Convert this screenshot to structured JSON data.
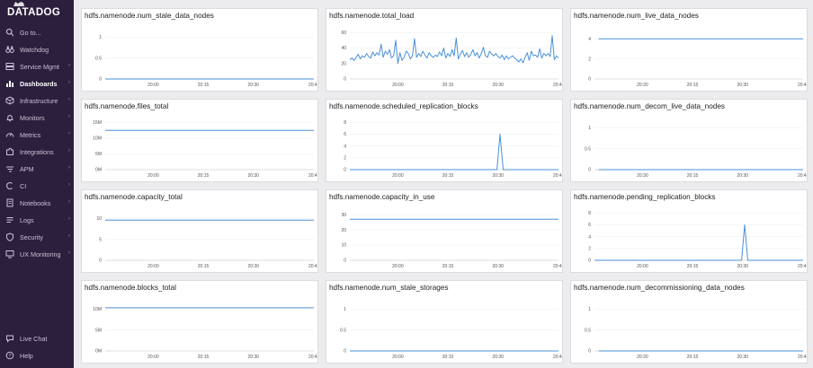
{
  "brand": {
    "name": "DATADOG"
  },
  "nav": {
    "items": [
      {
        "label": "Go to...",
        "icon": "search-icon",
        "chevron": false
      },
      {
        "label": "Watchdog",
        "icon": "binoculars-icon",
        "chevron": false
      },
      {
        "label": "Service Mgmt",
        "icon": "server-icon",
        "chevron": true
      },
      {
        "label": "Dashboards",
        "icon": "dashboard-icon",
        "chevron": true,
        "active": true
      },
      {
        "label": "Infrastructure",
        "icon": "cube-icon",
        "chevron": true
      },
      {
        "label": "Monitors",
        "icon": "bell-icon",
        "chevron": true
      },
      {
        "label": "Metrics",
        "icon": "gauge-icon",
        "chevron": true
      },
      {
        "label": "Integrations",
        "icon": "puzzle-icon",
        "chevron": true
      },
      {
        "label": "APM",
        "icon": "apm-icon",
        "chevron": true
      },
      {
        "label": "CI",
        "icon": "ci-icon",
        "chevron": true
      },
      {
        "label": "Notebooks",
        "icon": "notebook-icon",
        "chevron": true
      },
      {
        "label": "Logs",
        "icon": "logs-icon",
        "chevron": true
      },
      {
        "label": "Security",
        "icon": "shield-icon",
        "chevron": true
      },
      {
        "label": "UX Monitoring",
        "icon": "ux-monitor-icon",
        "chevron": true
      }
    ],
    "bottom": [
      {
        "label": "Live Chat",
        "icon": "chat-icon"
      },
      {
        "label": "Help",
        "icon": "help-icon"
      }
    ]
  },
  "colors": {
    "line": "#4a90d9",
    "sidebar": "#2b1f3d",
    "grid": "#f0f0f2",
    "axis": "#c8c8cc"
  },
  "chart_data": [
    {
      "title": "hdfs.namenode.num_stale_data_nodes",
      "type": "line",
      "x_ticks": [
        "20:00",
        "20:15",
        "20:30",
        "20:4"
      ],
      "y_ticks": [
        "0",
        "0.5",
        "1"
      ],
      "ylim": [
        0,
        1.2
      ],
      "x_start": 0.0,
      "series": [
        {
          "x": [
            0,
            1
          ],
          "y": [
            0,
            0
          ]
        }
      ]
    },
    {
      "title": "hdfs.namenode.total_load",
      "type": "line",
      "x_ticks": [
        "20:00",
        "20:15",
        "20:30",
        "20:4"
      ],
      "y_ticks": [
        "0",
        "20",
        "40",
        "60"
      ],
      "ylim": [
        0,
        65
      ],
      "x_start": 0.0,
      "series": [
        {
          "x": [
            0,
            0.01,
            0.02,
            0.03,
            0.04,
            0.05,
            0.06,
            0.07,
            0.08,
            0.09,
            0.1,
            0.11,
            0.12,
            0.13,
            0.14,
            0.15,
            0.16,
            0.17,
            0.18,
            0.19,
            0.2,
            0.21,
            0.22,
            0.23,
            0.24,
            0.25,
            0.26,
            0.27,
            0.28,
            0.29,
            0.3,
            0.31,
            0.32,
            0.33,
            0.34,
            0.35,
            0.36,
            0.37,
            0.38,
            0.39,
            0.4,
            0.41,
            0.42,
            0.43,
            0.44,
            0.45,
            0.46,
            0.47,
            0.48,
            0.49,
            0.5,
            0.51,
            0.52,
            0.53,
            0.54,
            0.55,
            0.56,
            0.57,
            0.58,
            0.59,
            0.6,
            0.61,
            0.62,
            0.63,
            0.64,
            0.65,
            0.66,
            0.67,
            0.68,
            0.69,
            0.7,
            0.71,
            0.72,
            0.73,
            0.74,
            0.75,
            0.76,
            0.77,
            0.78,
            0.79,
            0.8,
            0.81,
            0.82,
            0.83,
            0.84,
            0.85,
            0.86,
            0.87,
            0.88,
            0.89,
            0.9,
            0.91,
            0.92,
            0.93,
            0.94,
            0.95,
            0.96,
            0.97,
            0.98,
            0.99,
            1
          ],
          "y": [
            25,
            27,
            24,
            28,
            32,
            26,
            30,
            28,
            33,
            29,
            27,
            35,
            30,
            34,
            31,
            45,
            28,
            36,
            32,
            38,
            27,
            30,
            50,
            20,
            34,
            24,
            28,
            36,
            33,
            26,
            30,
            52,
            28,
            33,
            29,
            36,
            31,
            27,
            34,
            30,
            28,
            31,
            29,
            35,
            30,
            40,
            27,
            33,
            29,
            38,
            30,
            53,
            26,
            32,
            37,
            29,
            34,
            28,
            32,
            38,
            30,
            34,
            27,
            33,
            41,
            30,
            28,
            36,
            32,
            30,
            33,
            29,
            27,
            31,
            25,
            30,
            26,
            28,
            30,
            27,
            25,
            22,
            26,
            21,
            28,
            34,
            24,
            36,
            30,
            31,
            28,
            39,
            27,
            33,
            30,
            33,
            29,
            56,
            25,
            30,
            27
          ]
        }
      ]
    },
    {
      "title": "hdfs.namenode.num_live_data_nodes",
      "type": "line",
      "x_ticks": [
        "20:30",
        "20:15",
        "20:30",
        "20:4"
      ],
      "y_ticks": [
        "0",
        "2",
        "4"
      ],
      "ylim": [
        0,
        5
      ],
      "x_start": 0.02,
      "series": [
        {
          "x": [
            0,
            1
          ],
          "y": [
            4,
            4
          ]
        }
      ]
    },
    {
      "title": "hdfs.namenode.files_total",
      "type": "line",
      "x_ticks": [
        "20:00",
        "20:15",
        "20:30",
        "20:4"
      ],
      "y_ticks": [
        "0M",
        "5M",
        "10M",
        "15M"
      ],
      "ylim": [
        0,
        16
      ],
      "x_start": 0.0,
      "series": [
        {
          "x": [
            0,
            1
          ],
          "y": [
            12.5,
            12.5
          ]
        }
      ]
    },
    {
      "title": "hdfs.namenode.scheduled_replication_blocks",
      "type": "line",
      "x_ticks": [
        "20:00",
        "20:15",
        "20:30",
        "20:4"
      ],
      "y_ticks": [
        "0",
        "2",
        "4",
        "6",
        "8"
      ],
      "ylim": [
        0,
        8.5
      ],
      "x_start": 0.0,
      "series": [
        {
          "x": [
            0,
            0.705,
            0.72,
            0.735,
            1
          ],
          "y": [
            0,
            0,
            6,
            0,
            0
          ]
        }
      ]
    },
    {
      "title": "hdfs.namenode.num_decom_live_data_nodes",
      "type": "line",
      "x_ticks": [
        "20:30",
        "20:15",
        "20:30",
        "20:4"
      ],
      "y_ticks": [
        "0",
        "0.5",
        "1"
      ],
      "ylim": [
        0,
        1.2
      ],
      "x_start": 0.02,
      "series": [
        {
          "x": [
            0,
            1
          ],
          "y": [
            0,
            0
          ]
        }
      ]
    },
    {
      "title": "hdfs.namenode.capacity_total",
      "type": "line",
      "x_ticks": [
        "20:00",
        "20:15",
        "20:30",
        "20:4"
      ],
      "y_ticks": [
        "0",
        "5",
        "10"
      ],
      "ylim": [
        0,
        12
      ],
      "x_start": 0.0,
      "series": [
        {
          "x": [
            0,
            1
          ],
          "y": [
            9.6,
            9.6
          ]
        }
      ]
    },
    {
      "title": "hdfs.namenode.capacity_in_use",
      "type": "line",
      "x_ticks": [
        "20:00",
        "20:15",
        "20:30",
        "20:4"
      ],
      "y_ticks": [
        "0",
        "10",
        "20",
        "30"
      ],
      "ylim": [
        0,
        33
      ],
      "x_start": 0.0,
      "series": [
        {
          "x": [
            0,
            1
          ],
          "y": [
            27,
            27
          ]
        }
      ]
    },
    {
      "title": "hdfs.namenode.pending_replication_blocks",
      "type": "line",
      "x_ticks": [
        "20:00",
        "20:15",
        "20:30",
        "20:4"
      ],
      "y_ticks": [
        "0",
        "2",
        "4",
        "6",
        "8"
      ],
      "ylim": [
        0,
        8.5
      ],
      "x_start": 0.0,
      "series": [
        {
          "x": [
            0,
            0.705,
            0.72,
            0.735,
            1
          ],
          "y": [
            0,
            0,
            6,
            0,
            0
          ]
        }
      ]
    },
    {
      "title": "hdfs.namenode.blocks_total",
      "type": "line",
      "x_ticks": [
        "20:00",
        "20:15",
        "20:30",
        "20:4"
      ],
      "y_ticks": [
        "0M",
        "5M",
        "10M"
      ],
      "ylim": [
        0,
        12
      ],
      "x_start": 0.0,
      "series": [
        {
          "x": [
            0,
            1
          ],
          "y": [
            10.3,
            10.3
          ]
        }
      ]
    },
    {
      "title": "hdfs.namenode.num_stale_storages",
      "type": "line",
      "x_ticks": [
        "20:00",
        "20:15",
        "20:30",
        "20:4"
      ],
      "y_ticks": [
        "0",
        "0.5",
        "1"
      ],
      "ylim": [
        0,
        1.2
      ],
      "x_start": 0.0,
      "series": [
        {
          "x": [
            0,
            1
          ],
          "y": [
            0,
            0
          ]
        }
      ]
    },
    {
      "title": "hdfs.namenode.num_decommissioning_data_nodes",
      "type": "line",
      "x_ticks": [
        "20:30",
        "20:15",
        "20:30",
        "20:4"
      ],
      "y_ticks": [
        "0",
        "0.5",
        "1"
      ],
      "ylim": [
        0,
        1.2
      ],
      "x_start": 0.02,
      "series": [
        {
          "x": [
            0,
            1
          ],
          "y": [
            0,
            0
          ]
        }
      ]
    }
  ]
}
